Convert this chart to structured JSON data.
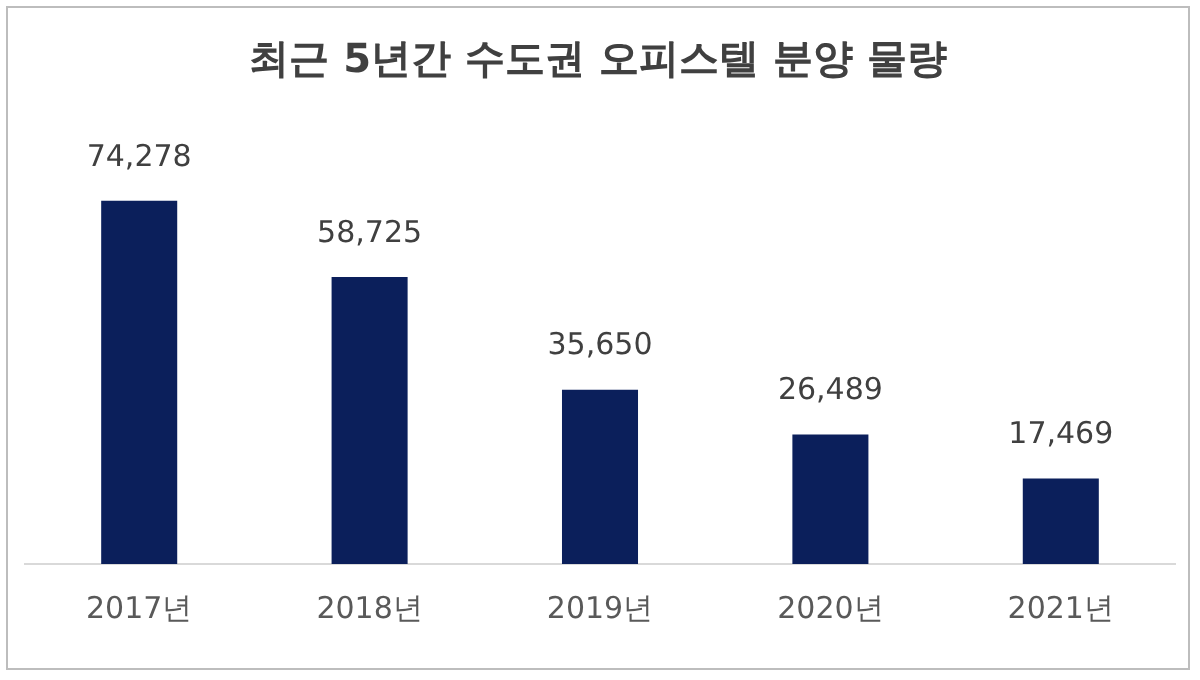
{
  "chart_data": {
    "type": "bar",
    "title": "최근 5년간 수도권 오피스텔 분양 물량",
    "categories": [
      "2017년",
      "2018년",
      "2019년",
      "2020년",
      "2021년"
    ],
    "values": [
      74278,
      58725,
      35650,
      26489,
      17469
    ],
    "value_labels": [
      "74,278",
      "58,725",
      "35,650",
      "26,489",
      "17,469"
    ],
    "color": "#0b1f5b",
    "grid": false,
    "legend": false
  }
}
